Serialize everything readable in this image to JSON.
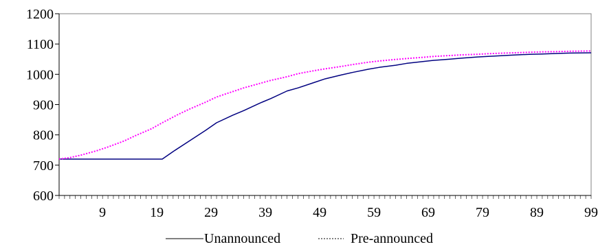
{
  "chart_data": {
    "type": "line",
    "title": "",
    "xlabel": "",
    "ylabel": "",
    "x_tick_labels": [
      "9",
      "19",
      "29",
      "39",
      "49",
      "59",
      "69",
      "79",
      "89",
      "99"
    ],
    "y_tick_labels": [
      "600",
      "700",
      "800",
      "900",
      "1000",
      "1100",
      "1200"
    ],
    "xlim": [
      1,
      99
    ],
    "ylim": [
      600,
      1200
    ],
    "grid": false,
    "legend_position": "bottom",
    "series": [
      {
        "name": "Unannounced",
        "color": "#000080",
        "style": "solid",
        "x": [
          1,
          5,
          10,
          15,
          19,
          20,
          22,
          25,
          28,
          30,
          33,
          35,
          38,
          40,
          43,
          45,
          48,
          50,
          53,
          55,
          58,
          60,
          63,
          65,
          68,
          70,
          73,
          75,
          78,
          80,
          83,
          85,
          88,
          90,
          93,
          95,
          99
        ],
        "y": [
          720,
          720,
          720,
          720,
          720,
          720,
          745,
          780,
          815,
          840,
          865,
          880,
          905,
          920,
          945,
          955,
          973,
          985,
          998,
          1006,
          1017,
          1023,
          1030,
          1036,
          1042,
          1046,
          1050,
          1053,
          1057,
          1059,
          1062,
          1064,
          1066,
          1067,
          1069,
          1070,
          1071
        ]
      },
      {
        "name": "Pre-announced",
        "color": "#FF00FF",
        "style": "dotted",
        "x": [
          1,
          3,
          5,
          8,
          10,
          13,
          15,
          18,
          20,
          23,
          25,
          28,
          30,
          33,
          35,
          38,
          40,
          43,
          45,
          48,
          50,
          53,
          55,
          58,
          60,
          63,
          65,
          68,
          70,
          73,
          75,
          78,
          80,
          83,
          85,
          88,
          90,
          93,
          95,
          99
        ],
        "y": [
          720,
          725,
          733,
          748,
          760,
          780,
          797,
          820,
          840,
          868,
          885,
          908,
          925,
          943,
          955,
          970,
          980,
          992,
          1002,
          1012,
          1018,
          1026,
          1032,
          1040,
          1044,
          1049,
          1052,
          1056,
          1059,
          1062,
          1064,
          1066,
          1068,
          1070,
          1071,
          1073,
          1074,
          1075,
          1076,
          1077
        ]
      }
    ]
  }
}
